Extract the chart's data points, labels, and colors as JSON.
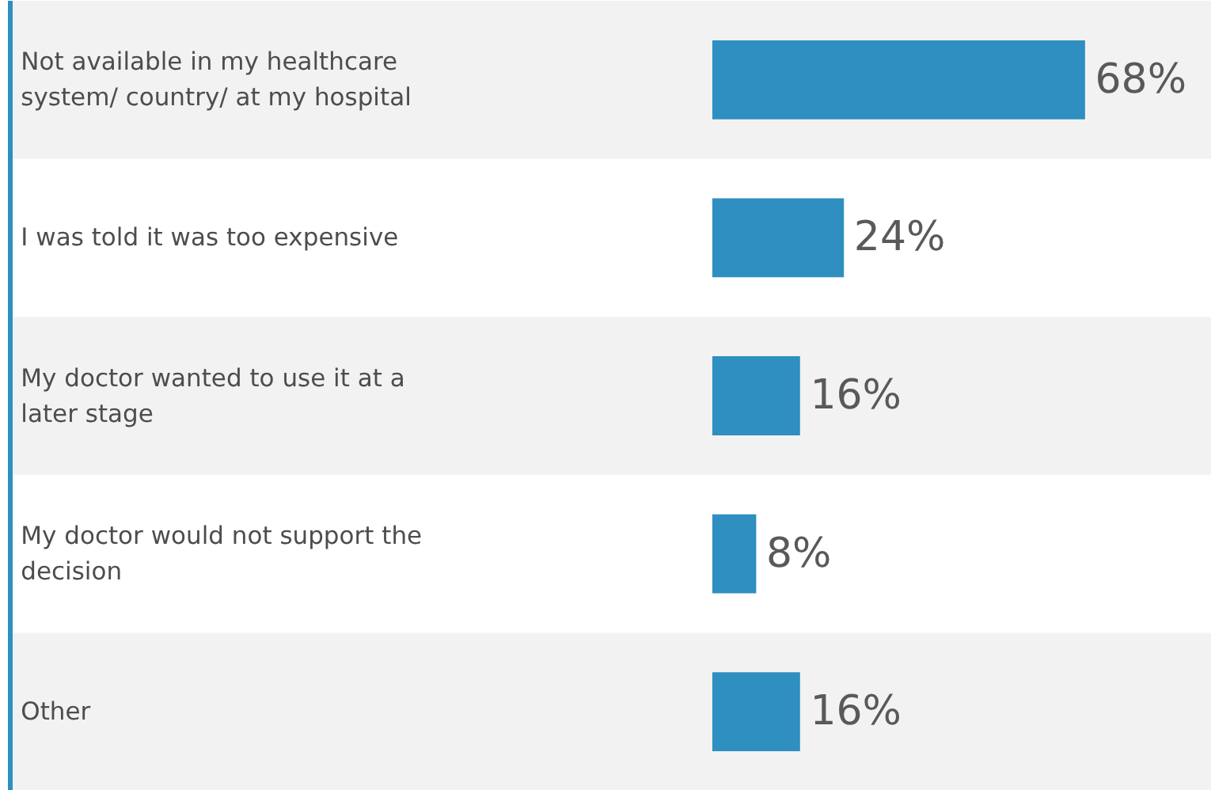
{
  "chart_data": {
    "type": "bar",
    "orientation": "horizontal",
    "categories": [
      "Not available in my healthcare system/ country/ at my hospital",
      "I was told it was too expensive",
      "My doctor wanted to use it at a later stage",
      "My doctor would not support the decision",
      "Other"
    ],
    "values": [
      68,
      24,
      16,
      8,
      16
    ],
    "value_labels": [
      "68%",
      "24%",
      "16%",
      "8%",
      "16%"
    ],
    "color": "#2e8fc0",
    "grid": false,
    "tick_labels": "y"
  }
}
